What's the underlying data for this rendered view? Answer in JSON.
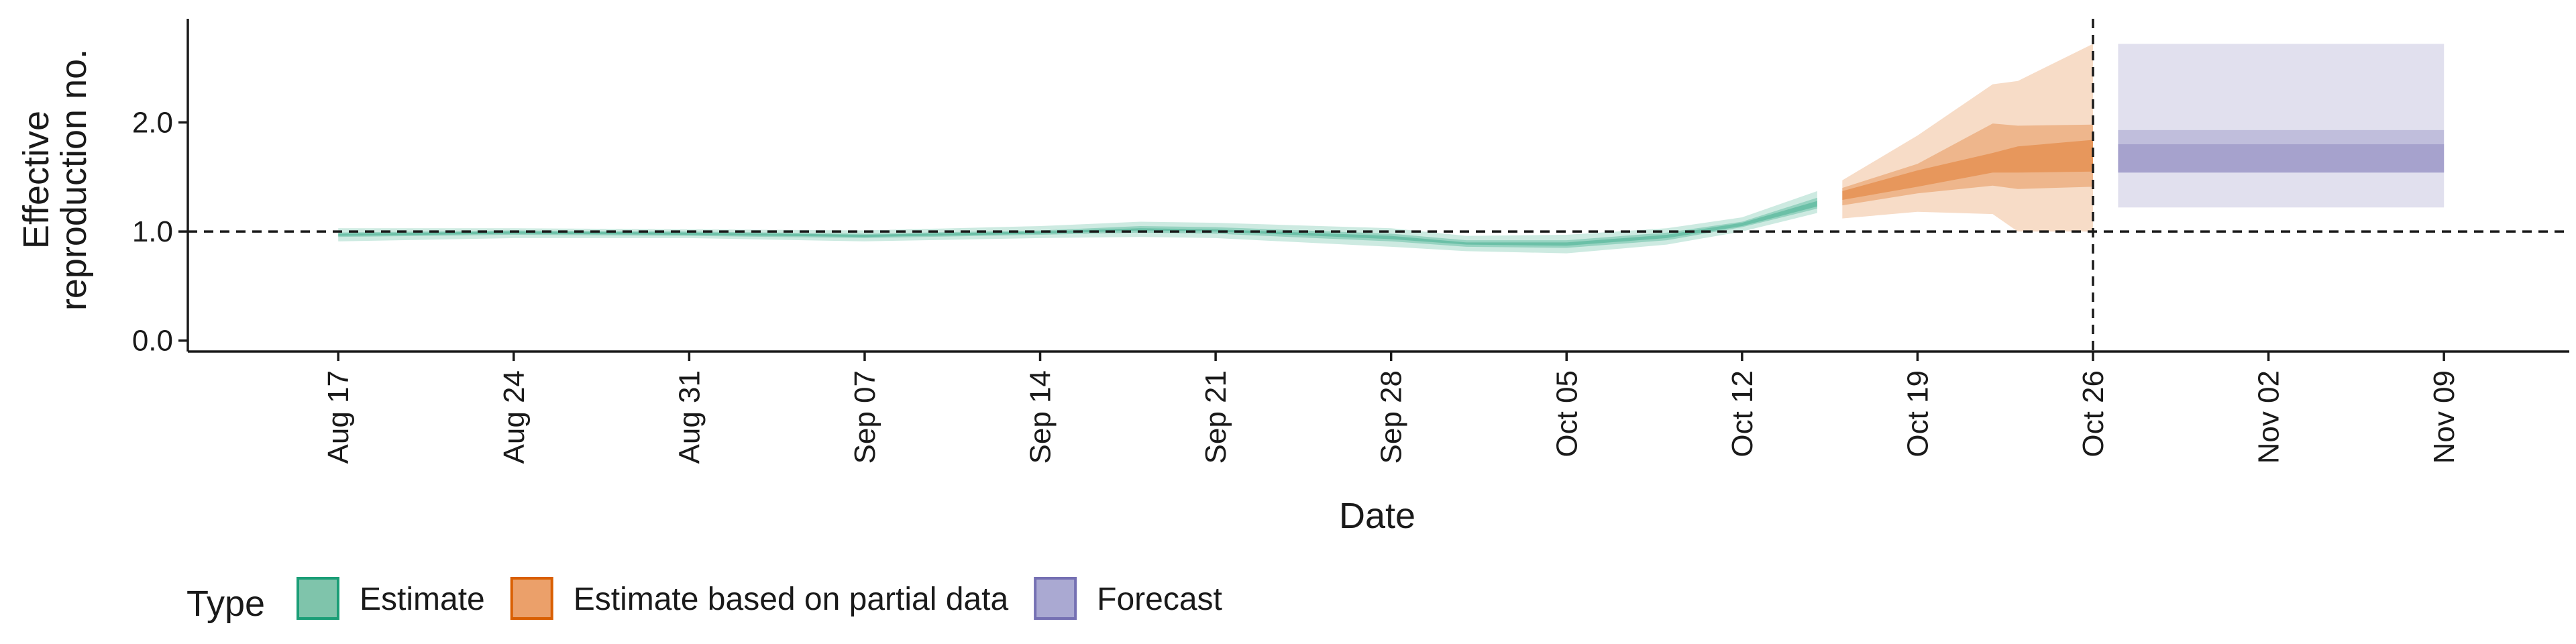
{
  "chart_data": {
    "type": "area",
    "xlabel": "Date",
    "ylabel_lines": [
      "Effective",
      "reproduction no."
    ],
    "ylim": [
      -0.1,
      2.95
    ],
    "y_ticks": [
      0.0,
      1.0,
      2.0
    ],
    "y_tick_labels": [
      "0.0",
      "1.0",
      "2.0"
    ],
    "x_ticks": [
      "2020-08-17",
      "2020-08-24",
      "2020-08-31",
      "2020-09-07",
      "2020-09-14",
      "2020-09-21",
      "2020-09-28",
      "2020-10-05",
      "2020-10-12",
      "2020-10-19",
      "2020-10-26",
      "2020-11-02",
      "2020-11-09"
    ],
    "x_tick_labels": [
      "Aug 17",
      "Aug 24",
      "Aug 31",
      "Sep 07",
      "Sep 14",
      "Sep 21",
      "Sep 28",
      "Oct 05",
      "Oct 12",
      "Oct 19",
      "Oct 26",
      "Nov 02",
      "Nov 09"
    ],
    "xlim": [
      "2020-08-11",
      "2020-11-14"
    ],
    "reference_line": {
      "y": 1.0,
      "style": "dashed"
    },
    "vertical_line": {
      "x": "2020-10-26",
      "style": "dashed"
    },
    "legend": {
      "title": "Type",
      "position": "bottom-left",
      "entries": [
        {
          "label": "Estimate",
          "fill": "#7fc4ab",
          "stroke": "#1b9e77"
        },
        {
          "label": "Estimate based on partial data",
          "fill": "#eba06a",
          "stroke": "#d95f02"
        },
        {
          "label": "Forecast",
          "fill": "#aaa9d2",
          "stroke": "#7570b3"
        }
      ]
    },
    "series": [
      {
        "name": "Estimate",
        "color": "#1b9e77",
        "x": [
          "2020-08-17",
          "2020-08-24",
          "2020-08-31",
          "2020-09-07",
          "2020-09-14",
          "2020-09-18",
          "2020-09-21",
          "2020-09-28",
          "2020-10-01",
          "2020-10-05",
          "2020-10-09",
          "2020-10-12",
          "2020-10-15"
        ],
        "median": [
          0.97,
          0.99,
          0.98,
          0.96,
          0.99,
          1.02,
          1.01,
          0.95,
          0.89,
          0.88,
          0.95,
          1.06,
          1.24
        ],
        "lower_90": [
          0.91,
          0.94,
          0.94,
          0.91,
          0.94,
          0.95,
          0.94,
          0.86,
          0.82,
          0.8,
          0.88,
          1.0,
          1.17
        ],
        "upper_90": [
          1.03,
          1.03,
          1.02,
          1.01,
          1.05,
          1.09,
          1.08,
          1.03,
          0.96,
          0.97,
          1.03,
          1.13,
          1.37
        ],
        "lower_50": [
          0.95,
          0.97,
          0.96,
          0.94,
          0.97,
          0.99,
          0.98,
          0.91,
          0.86,
          0.85,
          0.92,
          1.04,
          1.21
        ],
        "upper_50": [
          0.99,
          1.01,
          1.0,
          0.98,
          1.01,
          1.05,
          1.04,
          0.98,
          0.92,
          0.92,
          0.99,
          1.09,
          1.31
        ],
        "lower_20": [
          0.96,
          0.98,
          0.97,
          0.95,
          0.98,
          1.01,
          1.0,
          0.93,
          0.88,
          0.87,
          0.94,
          1.05,
          1.23
        ],
        "upper_20": [
          0.98,
          1.0,
          0.99,
          0.97,
          1.0,
          1.03,
          1.02,
          0.96,
          0.9,
          0.9,
          0.97,
          1.08,
          1.28
        ]
      },
      {
        "name": "Estimate based on partial data",
        "color": "#d95f02",
        "x": [
          "2020-10-16",
          "2020-10-19",
          "2020-10-22",
          "2020-10-23",
          "2020-10-26"
        ],
        "median": [
          1.33,
          1.48,
          1.62,
          1.62,
          1.71
        ],
        "lower_90": [
          1.12,
          1.18,
          1.16,
          1.0,
          1.0
        ],
        "upper_90": [
          1.47,
          1.88,
          2.35,
          2.38,
          2.72
        ],
        "lower_50": [
          1.24,
          1.35,
          1.42,
          1.39,
          1.41
        ],
        "upper_50": [
          1.4,
          1.62,
          1.99,
          1.97,
          1.98
        ],
        "lower_20": [
          1.29,
          1.41,
          1.54,
          1.54,
          1.55
        ],
        "upper_20": [
          1.37,
          1.56,
          1.72,
          1.78,
          1.84
        ]
      },
      {
        "name": "Forecast",
        "color": "#7570b3",
        "x": [
          "2020-10-27",
          "2020-11-09"
        ],
        "median": [
          1.67,
          1.67
        ],
        "lower_90": [
          1.22,
          1.22
        ],
        "upper_90": [
          2.72,
          2.72
        ],
        "lower_50": [
          1.54,
          1.54
        ],
        "upper_50": [
          1.93,
          1.93
        ],
        "lower_20": [
          1.54,
          1.54
        ],
        "upper_20": [
          1.8,
          1.8
        ]
      }
    ]
  }
}
